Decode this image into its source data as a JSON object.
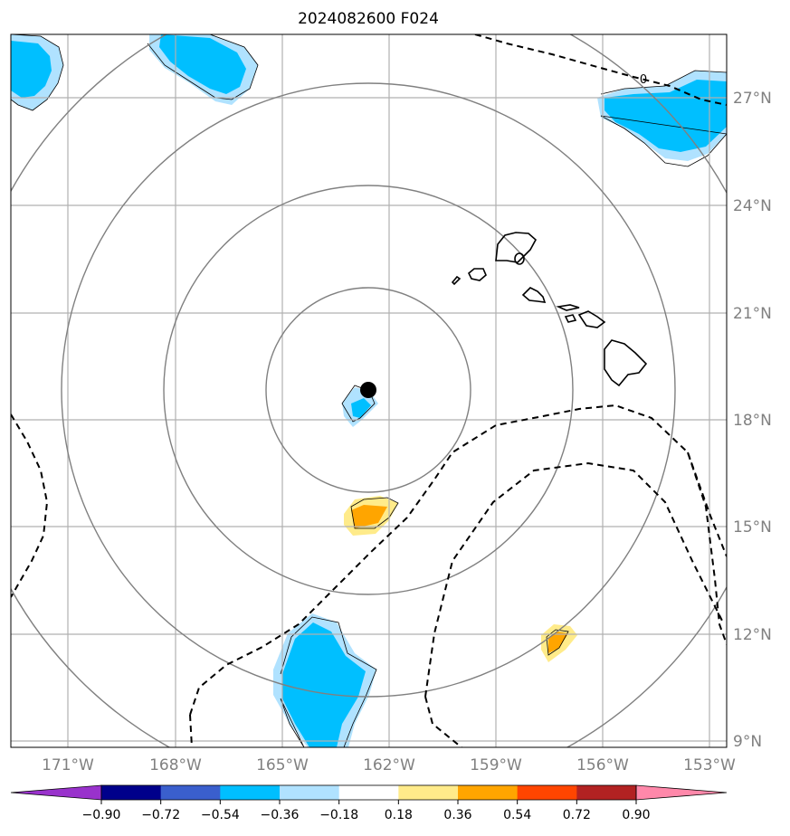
{
  "title": "2024082600 F024",
  "lat_labels": [
    "27°N",
    "24°N",
    "21°N",
    "18°N",
    "15°N",
    "12°N",
    "9°N"
  ],
  "lon_labels": [
    "171°W",
    "168°W",
    "165°W",
    "162°W",
    "159°W",
    "156°W",
    "153°W"
  ],
  "contour_labels": [
    "0"
  ],
  "colorbar": {
    "ticks": [
      "−0.90",
      "−0.72",
      "−0.54",
      "−0.36",
      "−0.18",
      "0.18",
      "0.36",
      "0.54",
      "0.72",
      "0.90"
    ],
    "colors": [
      "#9932cc",
      "#00008b",
      "#3a5fcd",
      "#00bfff",
      "#b0e2ff",
      "#ffffff",
      "#ffeb8a",
      "#ffa500",
      "#ff4500",
      "#b22222",
      "#ff88aa"
    ]
  },
  "storm_center": {
    "lat": 18.8,
    "lon": -162.5
  },
  "range_rings": 4,
  "fill_colors": {
    "light_blue": "#b0e2ff",
    "blue": "#00bfff",
    "light_yellow": "#ffeb8a",
    "orange": "#ffa500"
  },
  "islands": [
    "Niihau",
    "Kauai",
    "Oahu",
    "Molokai",
    "Maui",
    "Lanai",
    "Kahoolawe",
    "Hawaii",
    "Nihoa",
    "Necker"
  ]
}
